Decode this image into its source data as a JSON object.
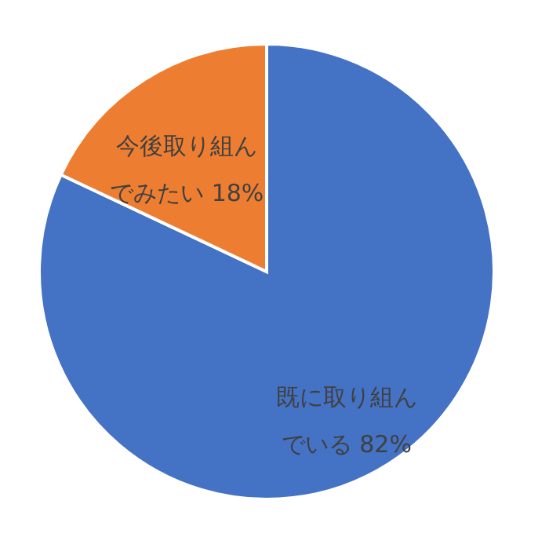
{
  "chart_data": {
    "type": "pie",
    "categories": [
      "既に取り組んでいる",
      "今後取り組んでみたい"
    ],
    "values": [
      82,
      18
    ],
    "colors": [
      "#4472c4",
      "#ed7d31"
    ],
    "value_labels": [
      "82%",
      "18%"
    ],
    "legend": false
  }
}
